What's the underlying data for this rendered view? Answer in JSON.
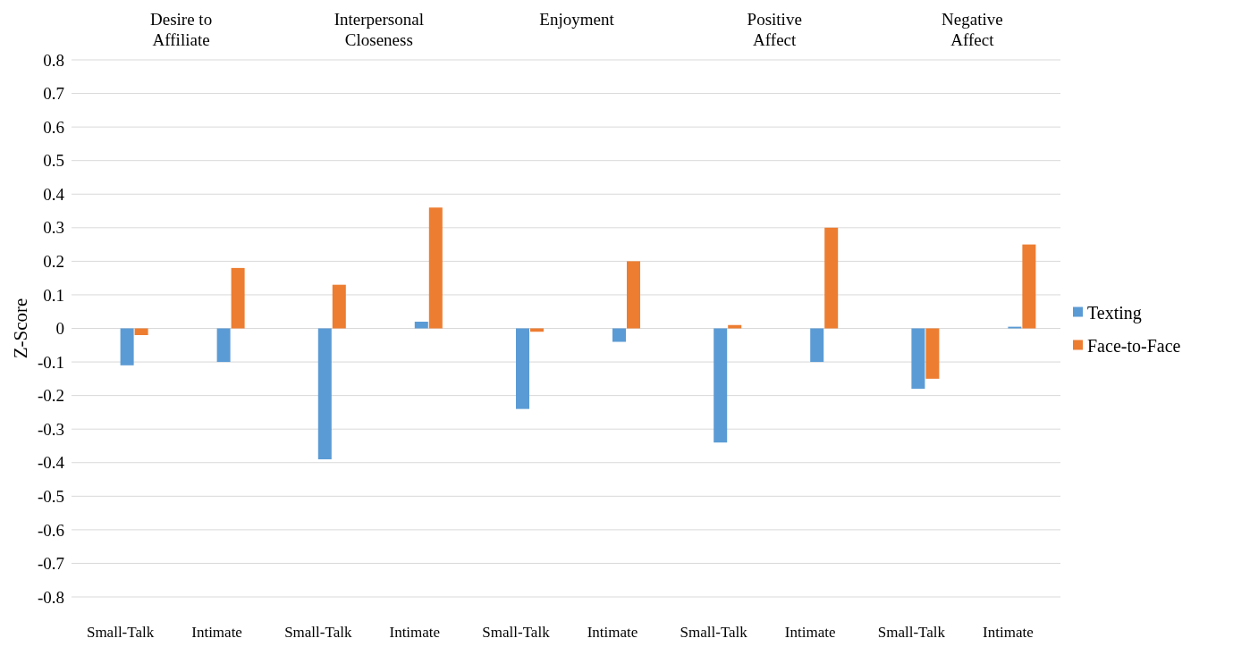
{
  "chart_data": {
    "type": "bar",
    "ylabel": "Z-Score",
    "categories": [
      "Small-Talk",
      "Intimate",
      "Small-Talk",
      "Intimate",
      "Small-Talk",
      "Intimate",
      "Small-Talk",
      "Intimate",
      "Small-Talk",
      "Intimate"
    ],
    "annotations": [
      "Desire to Affiliate",
      "Interpersonal Closeness",
      "Enjoyment",
      "Positive Affect",
      "Negative Affect"
    ],
    "series": [
      {
        "name": "Texting",
        "color": "#5b9bd5",
        "values": [
          -0.11,
          -0.1,
          -0.39,
          0.02,
          -0.24,
          -0.04,
          -0.34,
          -0.1,
          -0.18,
          0.005
        ]
      },
      {
        "name": "Face-to-Face",
        "color": "#ed7d31",
        "values": [
          -0.02,
          0.18,
          0.13,
          0.36,
          -0.01,
          0.2,
          0.01,
          0.3,
          -0.15,
          0.25
        ]
      }
    ],
    "ylim": [
      -0.8,
      0.8
    ],
    "yticks": [
      -0.8,
      -0.7,
      -0.6,
      -0.5,
      -0.4,
      -0.3,
      -0.2,
      -0.1,
      0,
      0.1,
      0.2,
      0.3,
      0.4,
      0.5,
      0.6,
      0.7,
      0.8
    ],
    "grid": "y",
    "legend": "right"
  }
}
